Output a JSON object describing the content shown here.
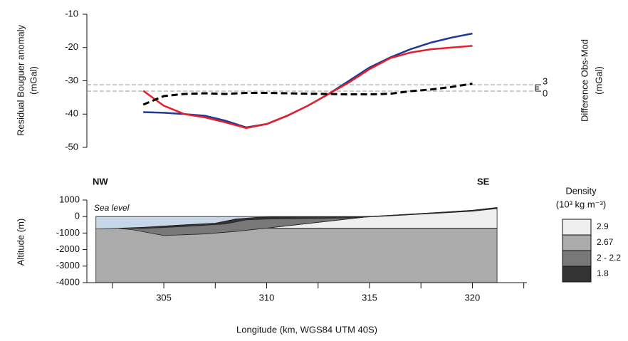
{
  "chart_data": [
    {
      "type": "line",
      "y_label": [
        "Residual Bouguer anomaly",
        "(mGal)"
      ],
      "y2_label": [
        "Difference Obs-Mod",
        "(mGal)"
      ],
      "xlim": [
        301.26,
        322.65
      ],
      "ylim": [
        -50,
        -10
      ],
      "yticks": [
        -50,
        -40,
        -30,
        -20,
        -10
      ],
      "y2lim": [
        -26.3,
        36
      ],
      "y2ticks": [
        0,
        3
      ],
      "y2minorticks": [
        1,
        2
      ],
      "x": [
        304,
        305,
        306,
        307,
        308,
        309,
        310,
        311,
        312,
        313,
        314,
        315,
        316,
        317,
        318,
        319,
        320
      ],
      "series": [
        {
          "color": "#1f3a96",
          "values": [
            -39.4,
            -39.6,
            -40,
            -40.5,
            -42,
            -44,
            -43,
            -40.5,
            -37.5,
            -34,
            -30,
            -26,
            -23,
            -20.5,
            -18.5,
            -17,
            -15.8
          ]
        },
        {
          "color": "#e3202b",
          "values": [
            -33,
            -37.5,
            -40,
            -41,
            -42.5,
            -44.2,
            -43,
            -40.5,
            -37.5,
            -34,
            -30.5,
            -26.5,
            -23.2,
            -21.5,
            -20.5,
            -20,
            -19.5
          ]
        },
        {
          "color": "#000000",
          "axis": "y2",
          "dashed": true,
          "values": [
            -6.3,
            -2.3,
            -1.3,
            -1,
            -1.3,
            -0.8,
            -0.8,
            -1,
            -1.2,
            -1.3,
            -1.5,
            -1.5,
            -1.2,
            0,
            0.8,
            2,
            3.5
          ]
        }
      ]
    },
    {
      "type": "section",
      "annotations": [
        "NW",
        "SE"
      ],
      "x_label": "Longitude (km, WGS84 UTM 40S)",
      "y_label": "Altitude (m)",
      "xlim": [
        301.26,
        322.65
      ],
      "xticks": [
        305,
        310,
        315,
        320
      ],
      "xminorticks": [
        302.5,
        307.5,
        312.5,
        317.5,
        322.5
      ],
      "ylim": [
        -4000,
        1000
      ],
      "yticks": [
        -4000,
        -3000,
        -2000,
        -1000,
        0,
        1000
      ],
      "sea": {
        "label": "Sea level",
        "color": "#c8d7e8",
        "x": [
          301.7,
          315,
          313,
          311,
          309.5,
          308.5,
          307.5,
          306,
          304,
          303,
          301.7
        ],
        "y": [
          0,
          0,
          -10,
          -20,
          -50,
          -150,
          -400,
          -500,
          -650,
          -700,
          -750
        ]
      },
      "legend_title": "Density",
      "legend_unit": "(10³ kg m⁻³)",
      "layers": [
        {
          "label": "2.9",
          "color": "#efefef",
          "x": [
            310,
            315,
            317,
            319,
            320,
            321.2,
            321.2
          ],
          "y": [
            -700,
            0,
            150,
            300,
            380,
            550,
            -700
          ]
        },
        {
          "label": "2.67",
          "color": "#ababab",
          "x": [
            301.7,
            321.2,
            321.2,
            301.7
          ],
          "y": [
            -700,
            -700,
            -4000,
            -4000
          ]
        },
        {
          "label": "2 - 2.2",
          "color": "#787878",
          "x": [
            302.8,
            304,
            306,
            307.5,
            308.5,
            309.5,
            311,
            313,
            315,
            310,
            308.5,
            307,
            305,
            303.5
          ],
          "y": [
            -720,
            -650,
            -500,
            -400,
            -150,
            -50,
            -20,
            -10,
            0,
            -700,
            -900,
            -1050,
            -1150,
            -800
          ]
        },
        {
          "label": "1.8",
          "color": "#333333",
          "x": [
            303,
            304,
            306,
            307.5,
            308.5,
            309.5,
            311,
            313,
            315,
            317,
            319,
            320,
            321.2,
            321.2,
            320,
            318,
            316,
            314,
            312,
            310,
            309,
            308,
            306,
            304
          ],
          "y": [
            -700,
            -650,
            -500,
            -400,
            -150,
            -50,
            -20,
            -10,
            0,
            150,
            300,
            380,
            550,
            480,
            320,
            180,
            40,
            -80,
            -120,
            -150,
            -200,
            -450,
            -600,
            -720
          ]
        }
      ]
    }
  ]
}
